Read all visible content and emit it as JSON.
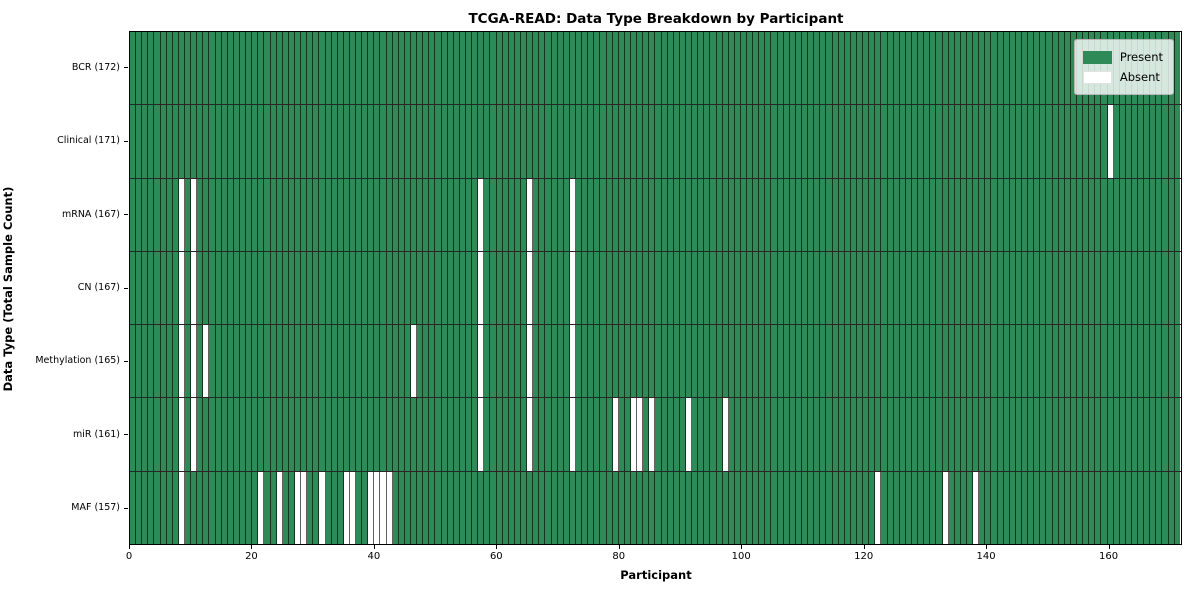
{
  "figure": {
    "title": "TCGA-READ: Data Type Breakdown by Participant",
    "xlabel": "Participant",
    "ylabel": "Data Type (Total Sample Count)"
  },
  "chart_data": {
    "type": "heatmap",
    "title": "TCGA-READ: Data Type Breakdown by Participant",
    "xlabel": "Participant",
    "ylabel": "Data Type (Total Sample Count)",
    "xlim": [
      0,
      172
    ],
    "n_participants": 172,
    "x_ticks": [
      0,
      20,
      40,
      60,
      80,
      100,
      120,
      140,
      160
    ],
    "grid": "cell-borders",
    "legend_position": "upper right",
    "colors": {
      "present": "#2e8b57",
      "absent": "#ffffff"
    },
    "legend_items": [
      {
        "label": "Present",
        "key": "present"
      },
      {
        "label": "Absent",
        "key": "absent"
      }
    ],
    "rows": [
      {
        "label": "BCR (172)",
        "data_type": "BCR",
        "total_samples": 172,
        "absent_participants": []
      },
      {
        "label": "Clinical (171)",
        "data_type": "Clinical",
        "total_samples": 171,
        "absent_participants": [
          160
        ]
      },
      {
        "label": "mRNA (167)",
        "data_type": "mRNA",
        "total_samples": 167,
        "absent_participants": [
          8,
          10,
          57,
          65,
          72
        ]
      },
      {
        "label": "CN (167)",
        "data_type": "CN",
        "total_samples": 167,
        "absent_participants": [
          8,
          10,
          57,
          65,
          72
        ]
      },
      {
        "label": "Methylation (165)",
        "data_type": "Methylation",
        "total_samples": 165,
        "absent_participants": [
          8,
          10,
          12,
          46,
          57,
          65,
          72
        ]
      },
      {
        "label": "miR (161)",
        "data_type": "miR",
        "total_samples": 161,
        "absent_participants": [
          8,
          10,
          57,
          65,
          72,
          79,
          82,
          83,
          85,
          91,
          97
        ]
      },
      {
        "label": "MAF (157)",
        "data_type": "MAF",
        "total_samples": 157,
        "absent_participants": [
          8,
          21,
          24,
          27,
          28,
          31,
          35,
          36,
          39,
          40,
          41,
          42,
          122,
          133,
          138
        ]
      }
    ]
  }
}
